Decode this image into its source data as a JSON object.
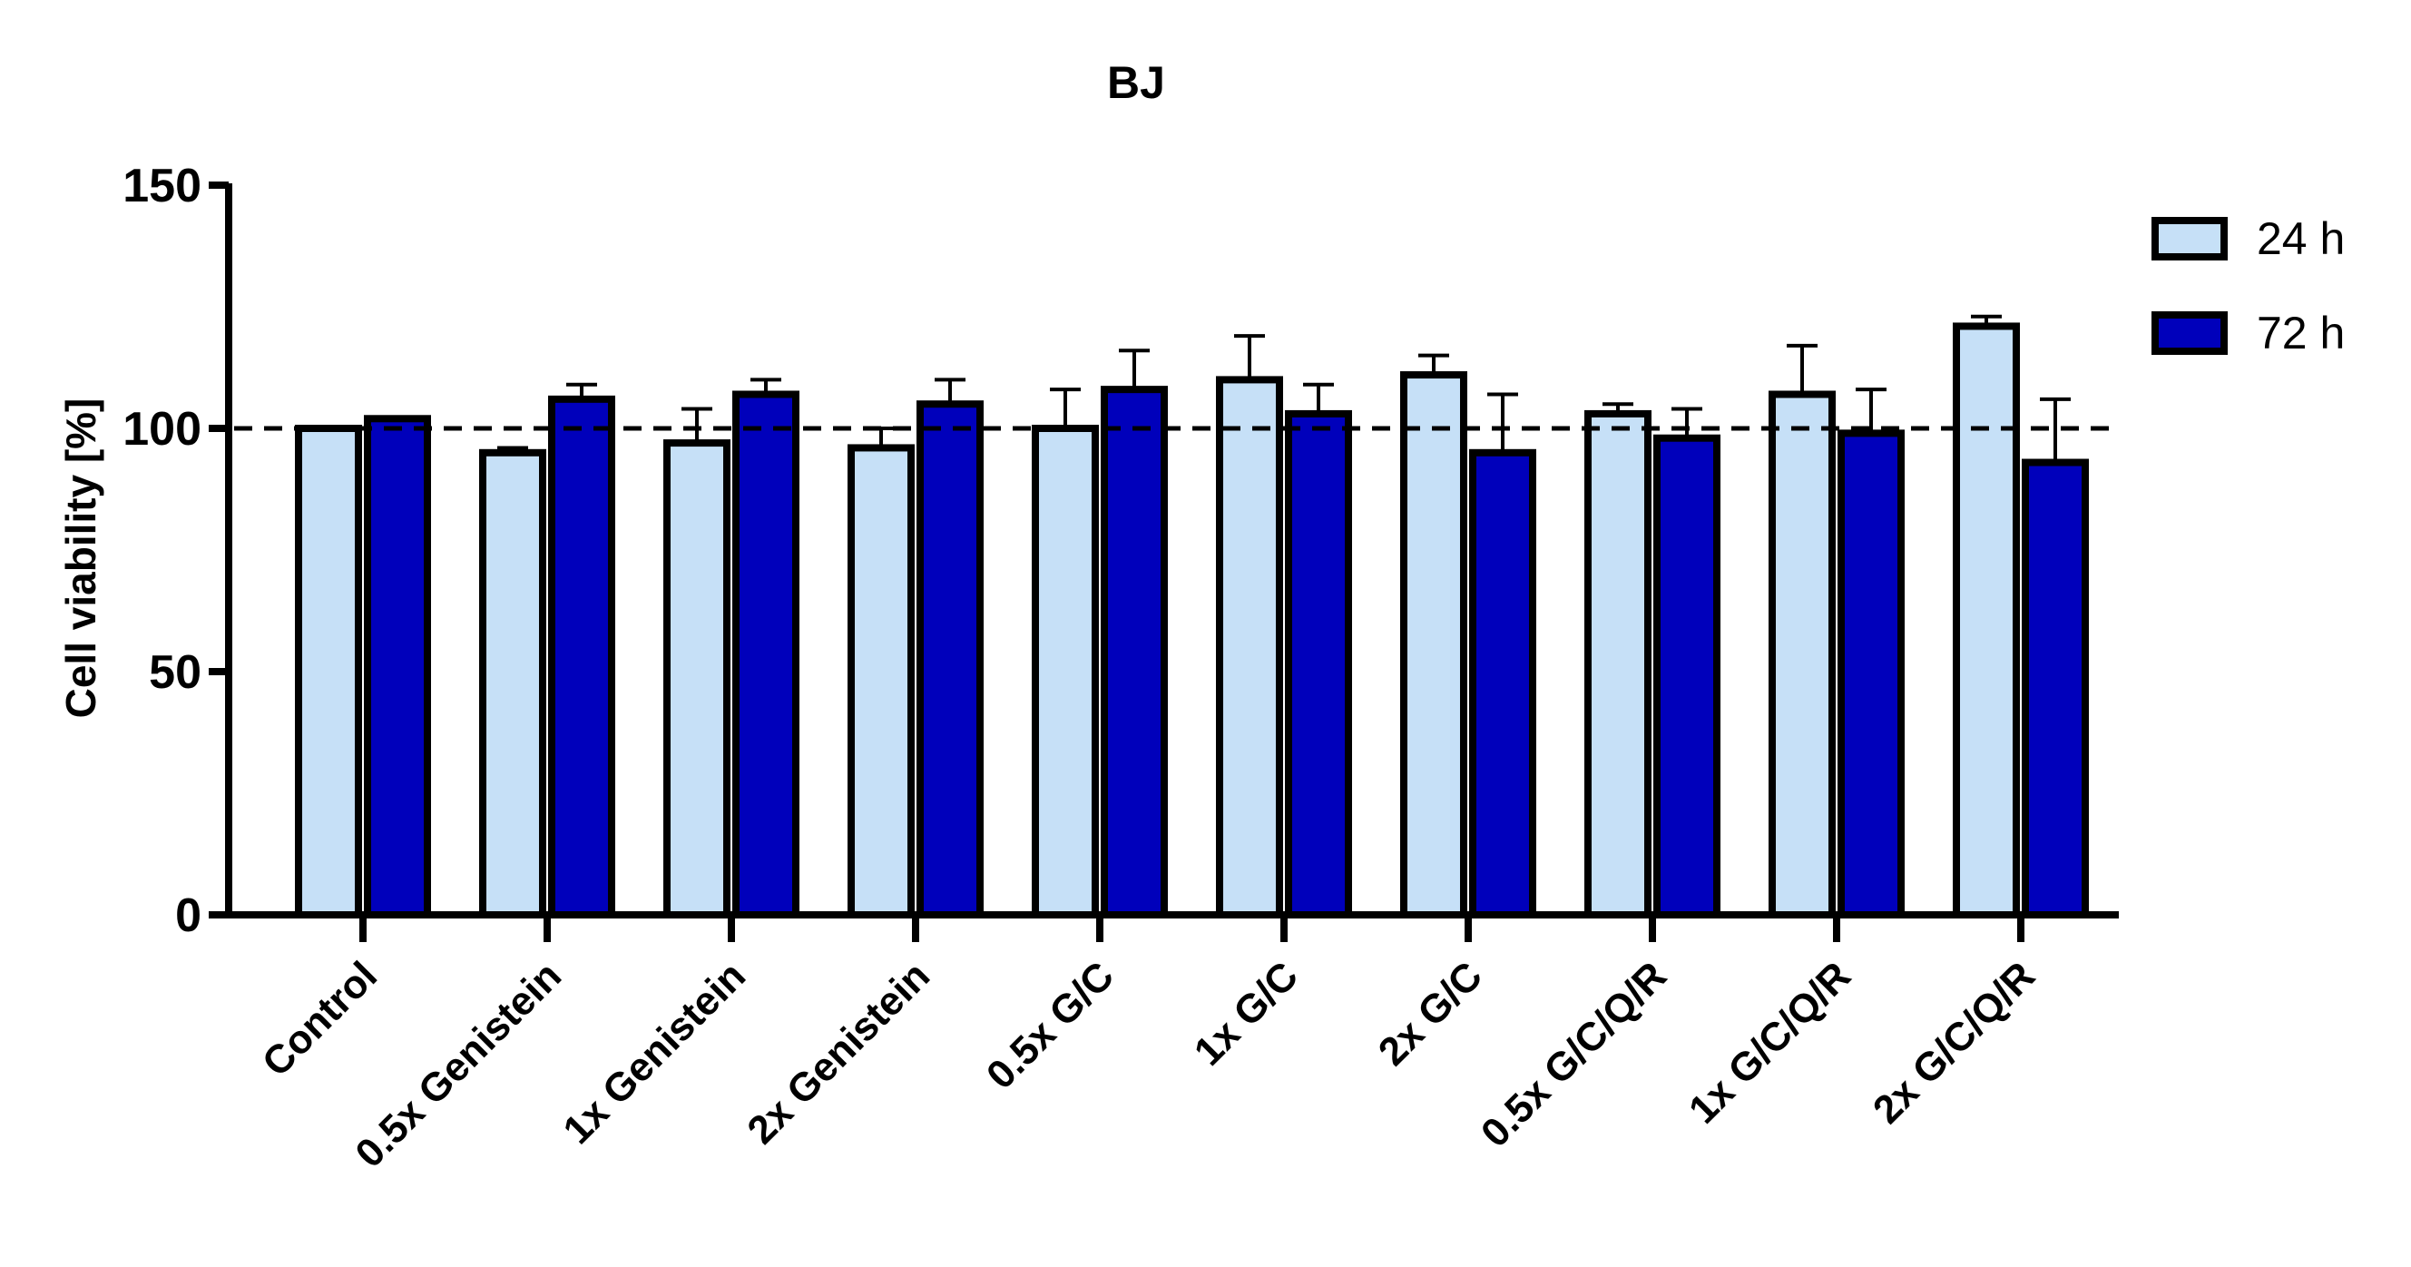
{
  "chart_data": {
    "type": "bar",
    "title": "BJ",
    "xlabel": "",
    "ylabel": "Cell viability [%]",
    "ylim": [
      0,
      150
    ],
    "yticks": [
      0,
      50,
      100,
      150
    ],
    "reference_line": 100,
    "grid": false,
    "legend_position": "top-right",
    "categories": [
      "Control",
      "0.5x Genistein",
      "1x Genistein",
      "2x Genistein",
      "0.5x G/C",
      "1x G/C",
      "2x G/C",
      "0.5x G/C/Q/R",
      "1x G/C/Q/R",
      "2x G/C/Q/R"
    ],
    "series": [
      {
        "name": "24 h",
        "color": "#c6e0f7",
        "values": [
          100,
          95,
          97,
          96,
          100,
          110,
          111,
          103,
          107,
          121
        ],
        "errors": [
          0,
          1,
          7,
          4,
          8,
          9,
          4,
          2,
          10,
          2
        ]
      },
      {
        "name": "72 h",
        "color": "#0000bb",
        "values": [
          102,
          106,
          107,
          105,
          108,
          103,
          95,
          98,
          99,
          93
        ],
        "errors": [
          0,
          3,
          3,
          5,
          8,
          6,
          12,
          6,
          9,
          13
        ]
      }
    ]
  }
}
